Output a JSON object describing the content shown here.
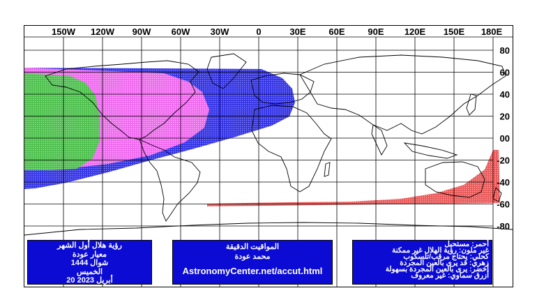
{
  "map": {
    "top_axis_labels": [
      "150W",
      "120W",
      "90W",
      "60W",
      "30W",
      "0",
      "30E",
      "60E",
      "90E",
      "120E",
      "150E",
      "180E"
    ],
    "right_axis_labels": [
      "80",
      "60",
      "40",
      "20",
      "00",
      "-20",
      "-40",
      "-60",
      "-80"
    ],
    "colors": {
      "easily_visible": "#4fc04f",
      "optical_aid_possible": "#ef6aef",
      "optical_aid_needed": "#3535e6",
      "impossible_area": "#e85a5a",
      "grid": "#000000",
      "info_box": "#0b0bd3"
    },
    "zones": [
      {
        "name": "green",
        "meaning_key": "legend.line5"
      },
      {
        "name": "magenta",
        "meaning_key": "legend.line4"
      },
      {
        "name": "blue",
        "meaning_key": "legend.line3"
      },
      {
        "name": "red",
        "meaning_key": "legend.line1"
      }
    ]
  },
  "title_box": {
    "line1": "رؤية هلال أول الشهر",
    "line2": "معيار عودة",
    "line3": "شوال 1444",
    "line4": "الخميس",
    "line5": "20 أبريل 2023"
  },
  "credit_box": {
    "line1": "المواقيت الدقيقة",
    "line2": "محمد عودة",
    "url": "AstronomyCenter.net/accut.html"
  },
  "legend": {
    "line1": "أحمر: مستحيل",
    "line2": "غير ملون: رؤية الهلال غير ممكنة",
    "line3": "كحلي: يحتاج مرقب/تلسكوب",
    "line4": "زهري: قد يرى بالعين المجردة",
    "line5": "أخضر: يرى بالعين المجردة بسهولة",
    "line6": "أزرق سماوي: غير معروف"
  }
}
